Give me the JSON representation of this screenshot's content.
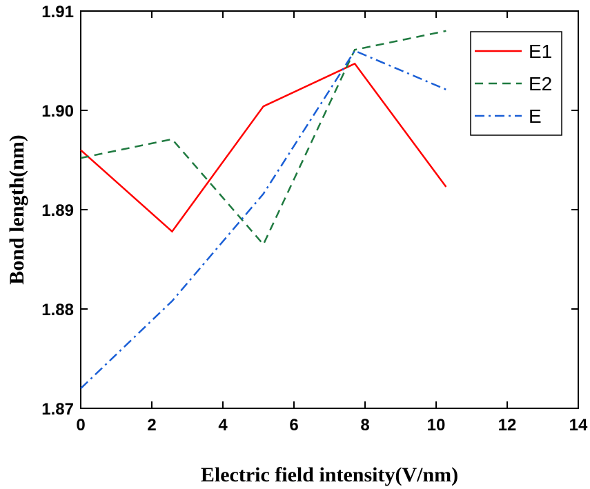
{
  "chart_data": {
    "type": "line",
    "title": "",
    "xlabel": "Electric field intensity(V/nm)",
    "ylabel": "Bond length(nm)",
    "xlim": [
      0,
      14
    ],
    "ylim": [
      1.87,
      1.91
    ],
    "xticks": [
      0,
      2,
      4,
      6,
      8,
      10,
      12,
      14
    ],
    "xtick_labels": [
      "0",
      "2",
      "4",
      "6",
      "8",
      "10",
      "12",
      "14"
    ],
    "yticks": [
      1.87,
      1.88,
      1.89,
      1.9,
      1.91
    ],
    "ytick_labels": [
      "1.87",
      "1.88",
      "1.89",
      "1.90",
      "1.91"
    ],
    "grid": false,
    "legend_position": "top-right",
    "series": [
      {
        "name": "E1",
        "color": "#ff0000",
        "dash": "solid",
        "x": [
          0,
          2.57,
          5.14,
          7.71,
          10.28
        ],
        "y": [
          1.896,
          1.8878,
          1.9004,
          1.9047,
          1.8923
        ]
      },
      {
        "name": "E2",
        "color": "#1f7a40",
        "dash": "dashed",
        "x": [
          0,
          2.57,
          5.14,
          7.71,
          10.28
        ],
        "y": [
          1.8952,
          1.8971,
          1.8865,
          1.9061,
          1.908
        ]
      },
      {
        "name": "E",
        "color": "#1a5fd6",
        "dash": "dashdot",
        "x": [
          0,
          2.57,
          5.14,
          7.71,
          10.28
        ],
        "y": [
          1.872,
          1.8808,
          1.8916,
          1.906,
          1.9021
        ]
      }
    ]
  }
}
